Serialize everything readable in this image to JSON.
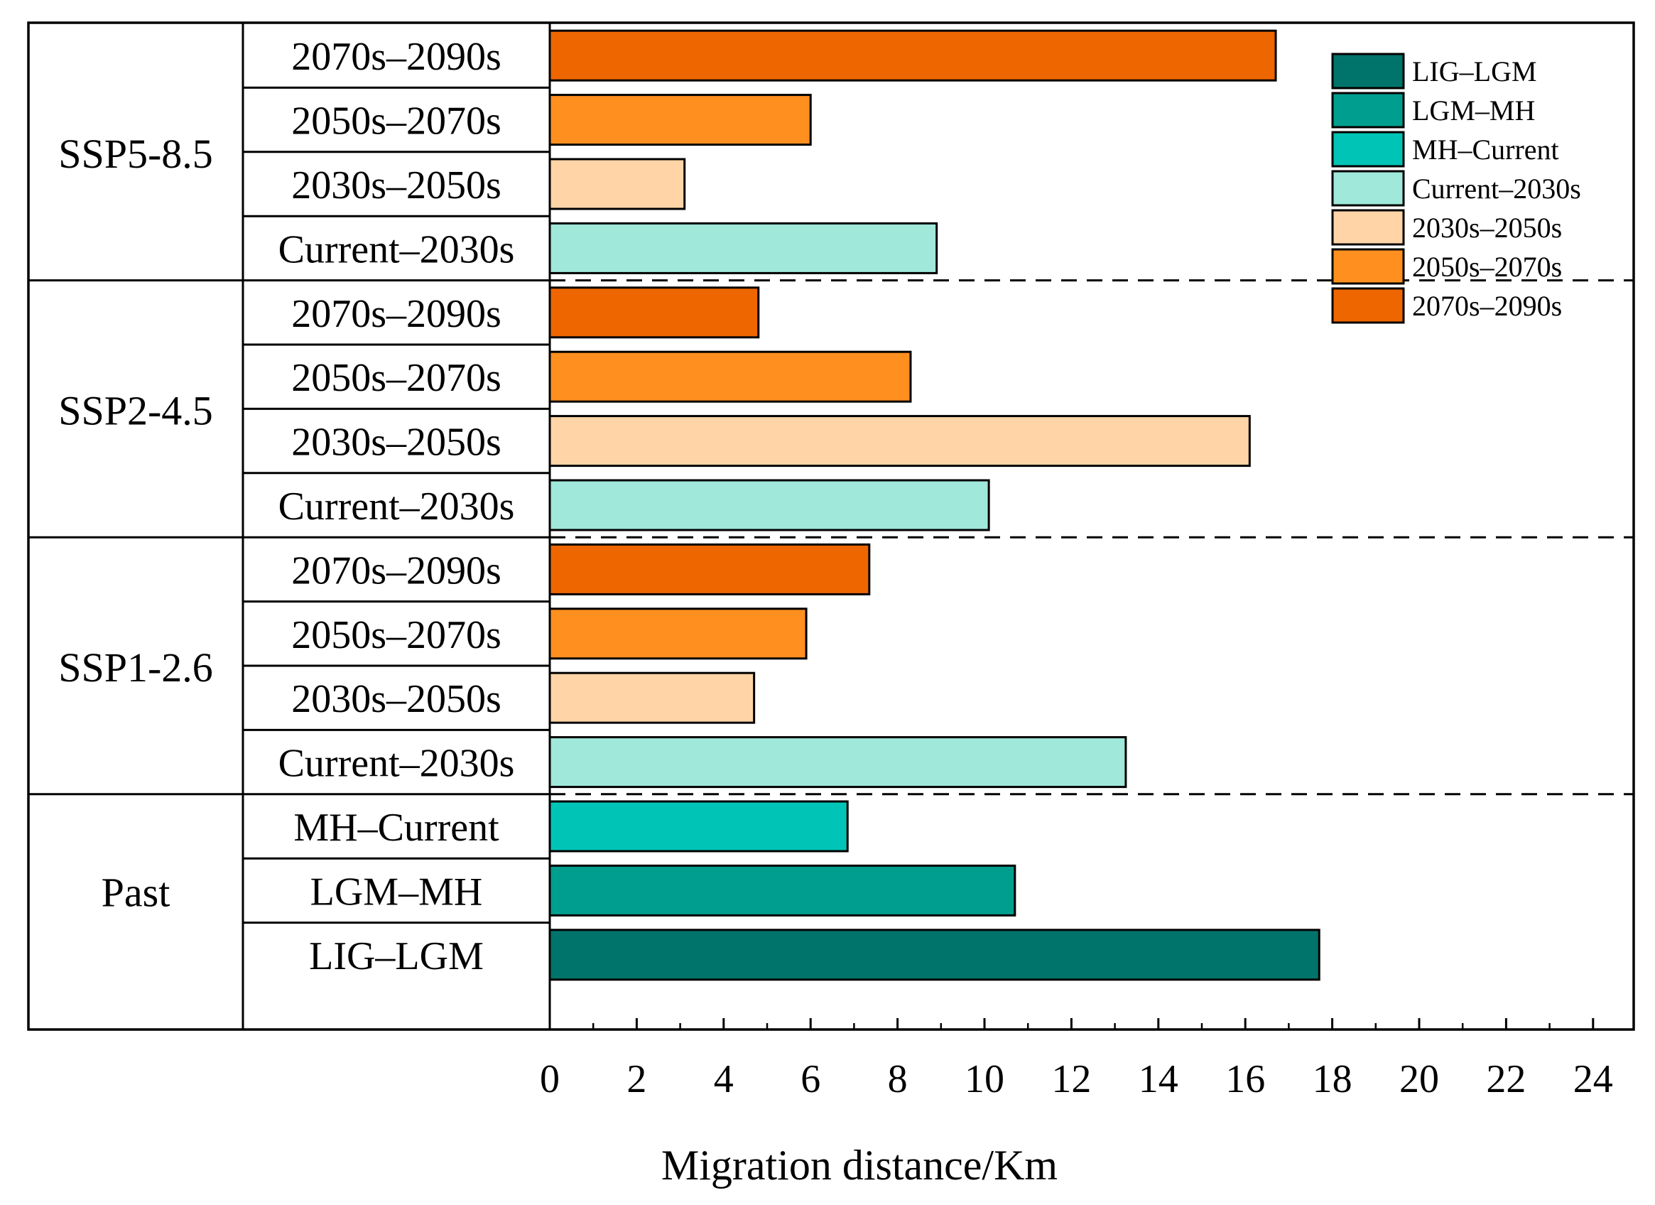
{
  "chart_data": {
    "type": "bar",
    "orientation": "horizontal",
    "title": "",
    "xlabel": "Migration distance/Km",
    "ylabel": "",
    "xlim": [
      0,
      25
    ],
    "xticks": [
      0,
      2,
      4,
      6,
      8,
      10,
      12,
      14,
      16,
      18,
      20,
      22,
      24
    ],
    "grid": false,
    "legend_position": "top-right",
    "colors": {
      "LIG–LGM": "#00746A",
      "LGM–MH": "#009E8F",
      "MH–Current": "#00C4B6",
      "Current–2030s": "#9FE8DA",
      "2030s–2050s": "#FFD4A6",
      "2050s–2070s": "#FF8F1F",
      "2070s–2090s": "#EE6600"
    },
    "legend": [
      "LIG–LGM",
      "LGM–MH",
      "MH–Current",
      "Current–2030s",
      "2030s–2050s",
      "2050s–2070s",
      "2070s–2090s"
    ],
    "groups": [
      {
        "name": "SSP5-8.5",
        "bars": [
          {
            "label": "2070s–2090s",
            "value": 16.7
          },
          {
            "label": "2050s–2070s",
            "value": 6.0
          },
          {
            "label": "2030s–2050s",
            "value": 3.1
          },
          {
            "label": "Current–2030s",
            "value": 8.9
          }
        ]
      },
      {
        "name": "SSP2-4.5",
        "bars": [
          {
            "label": "2070s–2090s",
            "value": 4.8
          },
          {
            "label": "2050s–2070s",
            "value": 8.3
          },
          {
            "label": "2030s–2050s",
            "value": 16.1
          },
          {
            "label": "Current–2030s",
            "value": 10.1
          }
        ]
      },
      {
        "name": "SSP1-2.6",
        "bars": [
          {
            "label": "2070s–2090s",
            "value": 7.35
          },
          {
            "label": "2050s–2070s",
            "value": 5.9
          },
          {
            "label": "2030s–2050s",
            "value": 4.7
          },
          {
            "label": "Current–2030s",
            "value": 13.25
          }
        ]
      },
      {
        "name": "Past",
        "bars": [
          {
            "label": "MH–Current",
            "value": 6.85
          },
          {
            "label": "LGM–MH",
            "value": 10.7
          },
          {
            "label": "LIG–LGM",
            "value": 17.7
          }
        ]
      }
    ]
  }
}
